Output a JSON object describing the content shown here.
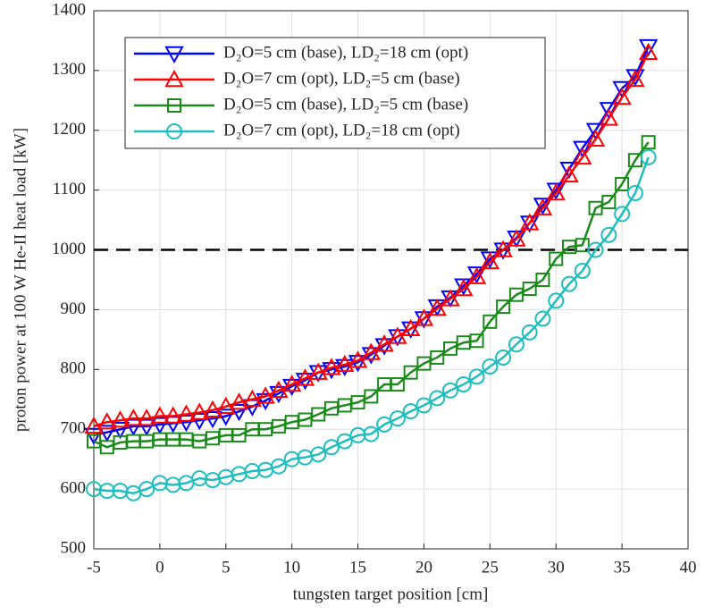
{
  "chart_data": {
    "type": "line",
    "x_label": "tungsten target position [cm]",
    "y_label": "proton power at 100 W He-II heat load [kW]",
    "x": [
      -5,
      -4,
      -3,
      -2,
      -1,
      0,
      1,
      2,
      3,
      4,
      5,
      6,
      7,
      8,
      9,
      10,
      11,
      12,
      13,
      14,
      15,
      16,
      17,
      18,
      19,
      20,
      21,
      22,
      23,
      24,
      25,
      26,
      27,
      28,
      29,
      30,
      31,
      32,
      33,
      34,
      35,
      36,
      37
    ],
    "series": [
      {
        "name": "D₂O=5 cm (base), LD₂=18 cm (opt)",
        "color": "#0000ff",
        "marker": "triangle-down",
        "values": [
          690,
          695,
          700,
          705,
          705,
          708,
          710,
          712,
          715,
          718,
          722,
          730,
          738,
          748,
          760,
          772,
          782,
          795,
          800,
          805,
          812,
          825,
          840,
          855,
          868,
          885,
          905,
          920,
          940,
          960,
          985,
          1000,
          1020,
          1045,
          1075,
          1100,
          1135,
          1170,
          1200,
          1235,
          1270,
          1290,
          1340
        ]
      },
      {
        "name": "D₂O=7 cm (opt), LD₂=5 cm (base)",
        "color": "#ff0000",
        "marker": "triangle-up",
        "values": [
          705,
          712,
          715,
          718,
          718,
          722,
          722,
          725,
          728,
          732,
          738,
          745,
          750,
          755,
          765,
          775,
          785,
          795,
          803,
          808,
          815,
          828,
          842,
          855,
          868,
          885,
          902,
          918,
          935,
          955,
          980,
          1000,
          1018,
          1045,
          1070,
          1095,
          1125,
          1155,
          1185,
          1220,
          1255,
          1285,
          1330
        ]
      },
      {
        "name": "D₂O=5 cm (base), LD₂=5 cm (base)",
        "color": "#1a8a1a",
        "marker": "square",
        "values": [
          680,
          670,
          678,
          680,
          680,
          683,
          683,
          683,
          680,
          685,
          690,
          690,
          700,
          700,
          705,
          712,
          716,
          725,
          735,
          740,
          745,
          755,
          775,
          775,
          795,
          810,
          820,
          835,
          845,
          848,
          880,
          905,
          925,
          935,
          950,
          985,
          1005,
          1008,
          1070,
          1080,
          1110,
          1150,
          1180
        ]
      },
      {
        "name": "D₂O=7 cm (opt), LD₂=18 cm (opt)",
        "color": "#1ebebe",
        "marker": "circle",
        "values": [
          600,
          597,
          597,
          593,
          600,
          610,
          607,
          610,
          618,
          615,
          620,
          625,
          630,
          632,
          638,
          650,
          653,
          658,
          670,
          680,
          690,
          692,
          708,
          718,
          730,
          740,
          752,
          765,
          775,
          788,
          805,
          820,
          842,
          862,
          885,
          915,
          943,
          965,
          1000,
          1025,
          1060,
          1095,
          1155
        ]
      }
    ],
    "reference_line": 1000,
    "xlim": [
      -5,
      40
    ],
    "xticks": [
      -5,
      0,
      5,
      10,
      15,
      20,
      25,
      30,
      35,
      40
    ],
    "ylim": [
      500,
      1400
    ],
    "yticks": [
      500,
      600,
      700,
      800,
      900,
      1000,
      1100,
      1200,
      1300,
      1400
    ],
    "grid": true,
    "legend": "upper left"
  }
}
